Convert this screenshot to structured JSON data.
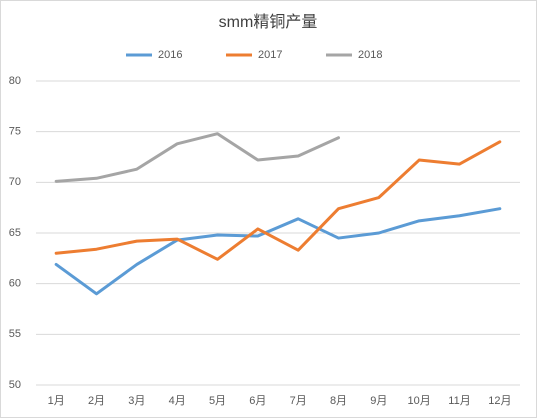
{
  "chart_data": {
    "type": "line",
    "title": "smm精铜产量",
    "categories": [
      "1月",
      "2月",
      "3月",
      "4月",
      "5月",
      "6月",
      "7月",
      "8月",
      "9月",
      "10月",
      "11月",
      "12月"
    ],
    "series": [
      {
        "name": "2016",
        "color": "#5b9bd5",
        "values": [
          61.9,
          59.0,
          61.9,
          64.3,
          64.8,
          64.7,
          66.4,
          64.5,
          65.0,
          66.2,
          66.7,
          67.4
        ]
      },
      {
        "name": "2017",
        "color": "#ed7d31",
        "values": [
          63.0,
          63.4,
          64.2,
          64.4,
          62.4,
          65.4,
          63.3,
          67.4,
          68.5,
          72.2,
          71.8,
          74.0
        ]
      },
      {
        "name": "2018",
        "color": "#a5a5a5",
        "values": [
          70.1,
          70.4,
          71.3,
          73.8,
          74.8,
          72.2,
          72.6,
          74.4,
          null,
          null,
          null,
          null
        ]
      }
    ],
    "ylim": [
      50,
      80
    ],
    "yticks": [
      50,
      55,
      60,
      65,
      70,
      75,
      80
    ],
    "grid": true,
    "legend": "top"
  }
}
